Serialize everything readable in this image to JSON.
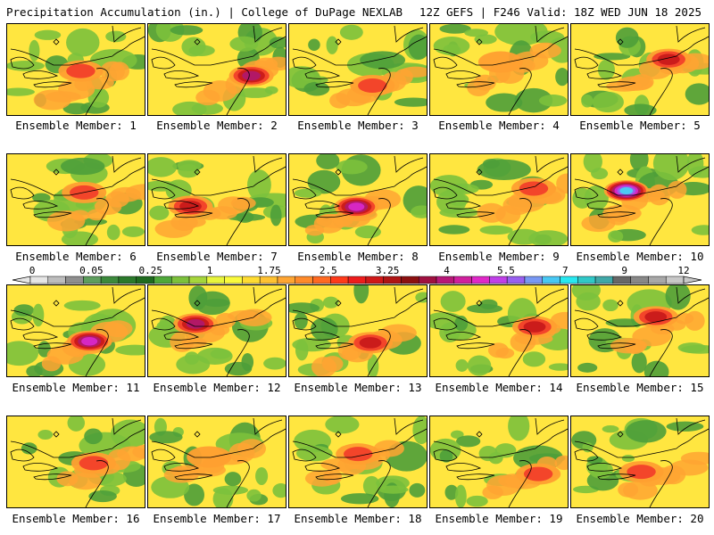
{
  "header": {
    "left": "Precipitation Accumulation (in.) | College of DuPage NEXLAB",
    "right": "12Z GEFS | F246 Valid: 18Z WED JUN 18 2025"
  },
  "panels": [
    {
      "label": "Ensemble Member: 1",
      "max": 2.6
    },
    {
      "label": "Ensemble Member: 2",
      "max": 4.8
    },
    {
      "label": "Ensemble Member: 3",
      "max": 3.0
    },
    {
      "label": "Ensemble Member: 4",
      "max": 1.9
    },
    {
      "label": "Ensemble Member: 5",
      "max": 3.8
    },
    {
      "label": "Ensemble Member: 6",
      "max": 2.5
    },
    {
      "label": "Ensemble Member: 7",
      "max": 3.2
    },
    {
      "label": "Ensemble Member: 8",
      "max": 5.8
    },
    {
      "label": "Ensemble Member: 9",
      "max": 3.0
    },
    {
      "label": "Ensemble Member: 10",
      "max": 7.5
    },
    {
      "label": "Ensemble Member: 11",
      "max": 5.0
    },
    {
      "label": "Ensemble Member: 12",
      "max": 4.5
    },
    {
      "label": "Ensemble Member: 13",
      "max": 3.3
    },
    {
      "label": "Ensemble Member: 14",
      "max": 3.2
    },
    {
      "label": "Ensemble Member: 15",
      "max": 3.4
    },
    {
      "label": "Ensemble Member: 16",
      "max": 2.6
    },
    {
      "label": "Ensemble Member: 17",
      "max": 2.0
    },
    {
      "label": "Ensemble Member: 18",
      "max": 2.6
    },
    {
      "label": "Ensemble Member: 19",
      "max": 3.0
    },
    {
      "label": "Ensemble Member: 20",
      "max": 2.7
    }
  ],
  "colorbar": {
    "tick_labels": [
      "0",
      "0.05",
      "0.25",
      "1",
      "1.75",
      "2.5",
      "3.25",
      "4",
      "5.5",
      "7",
      "9",
      "12"
    ],
    "colors": [
      "#e6e6e6",
      "#bdbdbd",
      "#8f8f8f",
      "#5e9e5e",
      "#3c8a3c",
      "#2b7a2b",
      "#1f6b1f",
      "#4fa83a",
      "#7cc13c",
      "#a6d63c",
      "#e8f53c",
      "#fafa3c",
      "#ffdc32",
      "#ffc232",
      "#ffa532",
      "#ff8a2a",
      "#ff6a22",
      "#ff3a1a",
      "#ee1c1c",
      "#d01818",
      "#b01414",
      "#8c1010",
      "#a01040",
      "#b81878",
      "#d0209e",
      "#e028c8",
      "#c040e8",
      "#9860f0",
      "#7898f4",
      "#48c8f4",
      "#28e8f0",
      "#30c8c8",
      "#40a8a8",
      "#686868",
      "#888888",
      "#a8a8a8",
      "#c8c8c8"
    ]
  }
}
